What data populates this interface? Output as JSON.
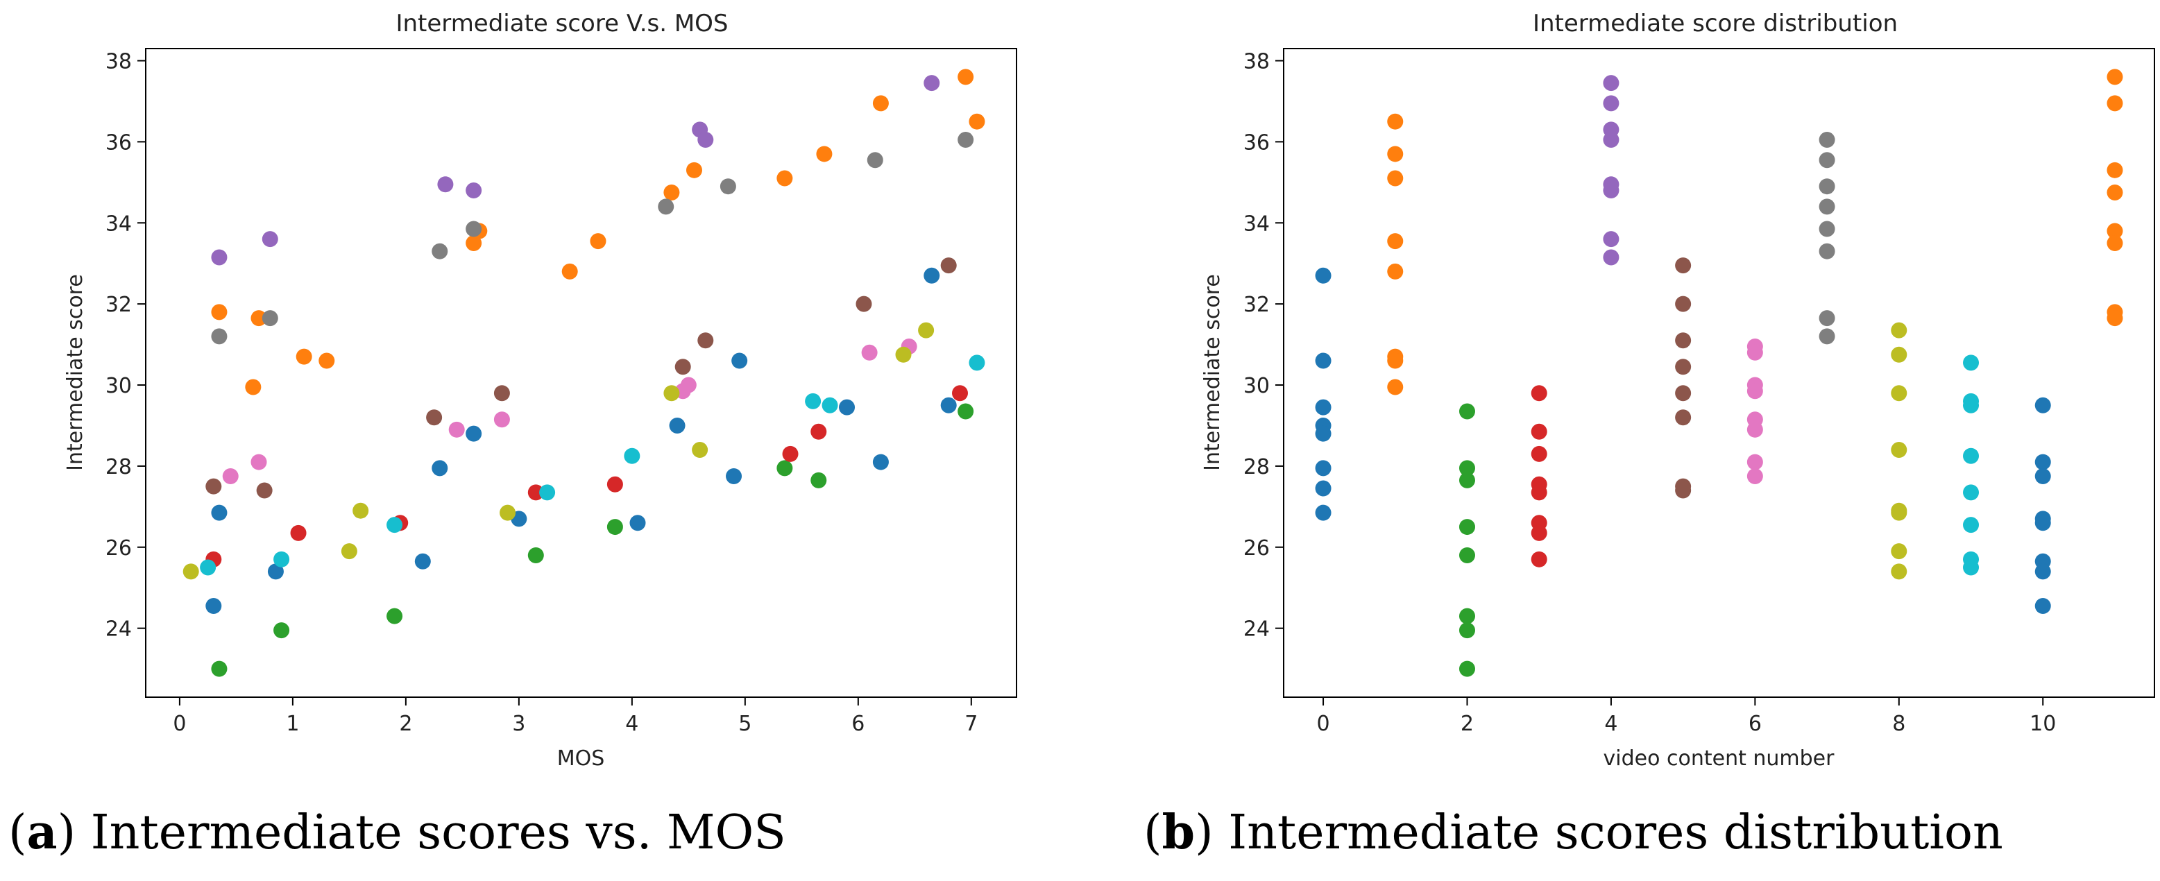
{
  "colors": [
    "#1f77b4",
    "#ff7f0e",
    "#2ca02c",
    "#d62728",
    "#9467bd",
    "#8c564b",
    "#e377c2",
    "#7f7f7f",
    "#bcbd22",
    "#17becf"
  ],
  "captions": {
    "a": {
      "label": "a",
      "text": "Intermediate scores vs. MOS"
    },
    "b": {
      "label": "b",
      "text": "Intermediate scores distribution"
    }
  },
  "chart_data": [
    {
      "type": "scatter",
      "title": "Intermediate score V.s. MOS",
      "xlabel": "MOS",
      "ylabel": "Intermediate score",
      "xlim": [
        -0.3,
        7.4
      ],
      "ylim": [
        22.3,
        38.3
      ],
      "xticks": [
        0,
        1,
        2,
        3,
        4,
        5,
        6,
        7
      ],
      "yticks": [
        24,
        26,
        28,
        30,
        32,
        34,
        36,
        38
      ],
      "grid": false,
      "series": [
        {
          "name": "blue",
          "color": "#1f77b4",
          "points": [
            [
              0.3,
              24.55
            ],
            [
              0.35,
              26.85
            ],
            [
              0.85,
              25.4
            ],
            [
              2.15,
              25.65
            ],
            [
              2.3,
              27.95
            ],
            [
              2.6,
              28.8
            ],
            [
              3.0,
              26.7
            ],
            [
              4.05,
              26.6
            ],
            [
              4.4,
              29.0
            ],
            [
              4.9,
              27.75
            ],
            [
              4.95,
              30.6
            ],
            [
              5.9,
              29.45
            ],
            [
              6.2,
              28.1
            ],
            [
              6.65,
              32.7
            ],
            [
              6.8,
              29.5
            ]
          ]
        },
        {
          "name": "orange",
          "color": "#ff7f0e",
          "points": [
            [
              0.35,
              31.8
            ],
            [
              0.65,
              29.95
            ],
            [
              0.7,
              31.65
            ],
            [
              1.1,
              30.7
            ],
            [
              1.3,
              30.6
            ],
            [
              2.6,
              33.5
            ],
            [
              2.65,
              33.8
            ],
            [
              3.45,
              32.8
            ],
            [
              3.7,
              33.55
            ],
            [
              4.35,
              34.75
            ],
            [
              4.55,
              35.3
            ],
            [
              5.35,
              35.1
            ],
            [
              5.7,
              35.7
            ],
            [
              6.2,
              36.95
            ],
            [
              6.95,
              37.6
            ],
            [
              7.05,
              36.5
            ]
          ]
        },
        {
          "name": "green",
          "color": "#2ca02c",
          "points": [
            [
              0.35,
              23.0
            ],
            [
              0.9,
              23.95
            ],
            [
              1.9,
              24.3
            ],
            [
              3.15,
              25.8
            ],
            [
              3.85,
              26.5
            ],
            [
              5.35,
              27.95
            ],
            [
              5.65,
              27.65
            ],
            [
              6.95,
              29.35
            ]
          ]
        },
        {
          "name": "red",
          "color": "#d62728",
          "points": [
            [
              0.3,
              25.7
            ],
            [
              1.05,
              26.35
            ],
            [
              1.95,
              26.6
            ],
            [
              3.15,
              27.35
            ],
            [
              3.85,
              27.55
            ],
            [
              5.4,
              28.3
            ],
            [
              5.65,
              28.85
            ],
            [
              6.9,
              29.8
            ]
          ]
        },
        {
          "name": "purple",
          "color": "#9467bd",
          "points": [
            [
              0.35,
              33.15
            ],
            [
              0.8,
              33.6
            ],
            [
              2.35,
              34.95
            ],
            [
              2.6,
              34.8
            ],
            [
              4.6,
              36.3
            ],
            [
              4.65,
              36.05
            ],
            [
              6.65,
              37.45
            ]
          ]
        },
        {
          "name": "brown",
          "color": "#8c564b",
          "points": [
            [
              0.3,
              27.5
            ],
            [
              0.75,
              27.4
            ],
            [
              2.25,
              29.2
            ],
            [
              2.85,
              29.8
            ],
            [
              4.45,
              30.45
            ],
            [
              4.65,
              31.1
            ],
            [
              6.05,
              32.0
            ],
            [
              6.8,
              32.95
            ]
          ]
        },
        {
          "name": "pink",
          "color": "#e377c2",
          "points": [
            [
              0.45,
              27.75
            ],
            [
              0.7,
              28.1
            ],
            [
              2.45,
              28.9
            ],
            [
              2.85,
              29.15
            ],
            [
              4.45,
              29.85
            ],
            [
              4.5,
              30.0
            ],
            [
              6.1,
              30.8
            ],
            [
              6.45,
              30.95
            ]
          ]
        },
        {
          "name": "gray",
          "color": "#7f7f7f",
          "points": [
            [
              0.35,
              31.2
            ],
            [
              0.8,
              31.65
            ],
            [
              2.3,
              33.3
            ],
            [
              2.6,
              33.85
            ],
            [
              4.3,
              34.4
            ],
            [
              4.85,
              34.9
            ],
            [
              6.15,
              35.55
            ],
            [
              6.95,
              36.05
            ]
          ]
        },
        {
          "name": "olive",
          "color": "#bcbd22",
          "points": [
            [
              0.1,
              25.4
            ],
            [
              1.5,
              25.9
            ],
            [
              1.6,
              26.9
            ],
            [
              2.9,
              26.85
            ],
            [
              4.35,
              29.8
            ],
            [
              4.6,
              28.4
            ],
            [
              6.4,
              30.75
            ],
            [
              6.6,
              31.35
            ]
          ]
        },
        {
          "name": "cyan",
          "color": "#17becf",
          "points": [
            [
              0.25,
              25.5
            ],
            [
              0.9,
              25.7
            ],
            [
              1.9,
              26.55
            ],
            [
              3.25,
              27.35
            ],
            [
              4.0,
              28.25
            ],
            [
              5.6,
              29.6
            ],
            [
              5.75,
              29.5
            ],
            [
              7.05,
              30.55
            ]
          ]
        }
      ]
    },
    {
      "type": "scatter",
      "title": "Intermediate score distribution",
      "xlabel": "video content number",
      "ylabel": "Intermediate score",
      "xlim": [
        -0.55,
        11.55
      ],
      "ylim": [
        22.3,
        38.3
      ],
      "xticks": [
        0,
        2,
        4,
        6,
        8,
        10
      ],
      "yticks": [
        24,
        26,
        28,
        30,
        32,
        34,
        36,
        38
      ],
      "grid": false,
      "series": [
        {
          "name": "blue",
          "color": "#1f77b4",
          "points": [
            [
              0,
              32.7
            ],
            [
              0,
              30.6
            ],
            [
              0,
              29.45
            ],
            [
              0,
              29.0
            ],
            [
              0,
              28.8
            ],
            [
              0,
              27.95
            ],
            [
              0,
              27.45
            ],
            [
              0,
              26.85
            ],
            [
              10,
              29.5
            ],
            [
              10,
              28.1
            ],
            [
              10,
              27.75
            ],
            [
              10,
              26.7
            ],
            [
              10,
              26.6
            ],
            [
              10,
              25.65
            ],
            [
              10,
              25.4
            ],
            [
              10,
              24.55
            ]
          ]
        },
        {
          "name": "orange",
          "color": "#ff7f0e",
          "points": [
            [
              1,
              36.5
            ],
            [
              1,
              35.7
            ],
            [
              1,
              35.1
            ],
            [
              1,
              33.55
            ],
            [
              1,
              32.8
            ],
            [
              1,
              30.7
            ],
            [
              1,
              30.6
            ],
            [
              1,
              29.95
            ],
            [
              11,
              37.6
            ],
            [
              11,
              36.95
            ],
            [
              11,
              35.3
            ],
            [
              11,
              34.75
            ],
            [
              11,
              33.8
            ],
            [
              11,
              33.5
            ],
            [
              11,
              31.8
            ],
            [
              11,
              31.65
            ]
          ]
        },
        {
          "name": "green",
          "color": "#2ca02c",
          "points": [
            [
              2,
              29.35
            ],
            [
              2,
              27.95
            ],
            [
              2,
              27.65
            ],
            [
              2,
              26.5
            ],
            [
              2,
              25.8
            ],
            [
              2,
              24.3
            ],
            [
              2,
              23.95
            ],
            [
              2,
              23.0
            ]
          ]
        },
        {
          "name": "red",
          "color": "#d62728",
          "points": [
            [
              3,
              29.8
            ],
            [
              3,
              28.85
            ],
            [
              3,
              28.3
            ],
            [
              3,
              27.55
            ],
            [
              3,
              27.35
            ],
            [
              3,
              26.6
            ],
            [
              3,
              26.35
            ],
            [
              3,
              25.7
            ]
          ]
        },
        {
          "name": "purple",
          "color": "#9467bd",
          "points": [
            [
              4,
              37.45
            ],
            [
              4,
              36.95
            ],
            [
              4,
              36.3
            ],
            [
              4,
              36.05
            ],
            [
              4,
              34.95
            ],
            [
              4,
              34.8
            ],
            [
              4,
              33.6
            ],
            [
              4,
              33.15
            ]
          ]
        },
        {
          "name": "brown",
          "color": "#8c564b",
          "points": [
            [
              5,
              32.95
            ],
            [
              5,
              32.0
            ],
            [
              5,
              31.1
            ],
            [
              5,
              30.45
            ],
            [
              5,
              29.8
            ],
            [
              5,
              29.2
            ],
            [
              5,
              27.5
            ],
            [
              5,
              27.4
            ]
          ]
        },
        {
          "name": "pink",
          "color": "#e377c2",
          "points": [
            [
              6,
              30.95
            ],
            [
              6,
              30.8
            ],
            [
              6,
              30.0
            ],
            [
              6,
              29.85
            ],
            [
              6,
              29.15
            ],
            [
              6,
              28.9
            ],
            [
              6,
              28.1
            ],
            [
              6,
              27.75
            ]
          ]
        },
        {
          "name": "gray",
          "color": "#7f7f7f",
          "points": [
            [
              7,
              36.05
            ],
            [
              7,
              35.55
            ],
            [
              7,
              34.9
            ],
            [
              7,
              34.4
            ],
            [
              7,
              33.85
            ],
            [
              7,
              33.3
            ],
            [
              7,
              31.65
            ],
            [
              7,
              31.2
            ]
          ]
        },
        {
          "name": "olive",
          "color": "#bcbd22",
          "points": [
            [
              8,
              31.35
            ],
            [
              8,
              30.75
            ],
            [
              8,
              29.8
            ],
            [
              8,
              28.4
            ],
            [
              8,
              26.9
            ],
            [
              8,
              26.85
            ],
            [
              8,
              25.9
            ],
            [
              8,
              25.4
            ]
          ]
        },
        {
          "name": "cyan",
          "color": "#17becf",
          "points": [
            [
              9,
              30.55
            ],
            [
              9,
              29.6
            ],
            [
              9,
              29.5
            ],
            [
              9,
              28.25
            ],
            [
              9,
              27.35
            ],
            [
              9,
              26.55
            ],
            [
              9,
              25.7
            ],
            [
              9,
              25.5
            ]
          ]
        }
      ]
    }
  ]
}
